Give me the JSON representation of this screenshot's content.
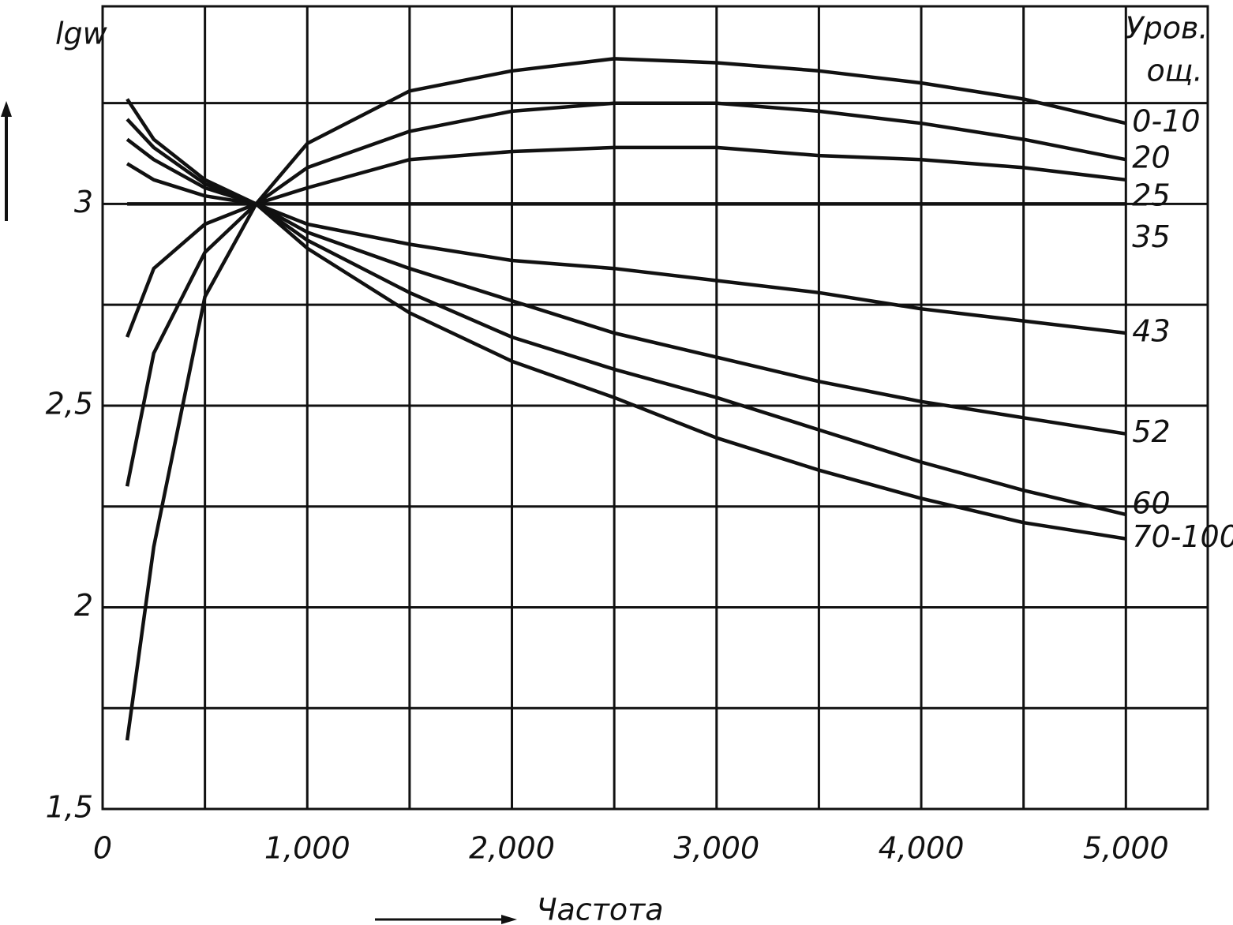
{
  "chart_data": {
    "type": "line",
    "y_label": "lgw",
    "x_label": "Частота",
    "legend_title": [
      "Уров.",
      "ощ."
    ],
    "x": [
      120,
      250,
      500,
      750,
      1000,
      1500,
      2000,
      2500,
      3000,
      3500,
      4000,
      4500,
      5000
    ],
    "series": [
      {
        "name": "0-10",
        "color": "#111111",
        "values": [
          1.67,
          2.15,
          2.77,
          3.0,
          3.15,
          3.28,
          3.33,
          3.36,
          3.35,
          3.33,
          3.3,
          3.26,
          3.2
        ]
      },
      {
        "name": "20",
        "color": "#111111",
        "values": [
          2.3,
          2.63,
          2.88,
          3.0,
          3.09,
          3.18,
          3.23,
          3.25,
          3.25,
          3.23,
          3.2,
          3.16,
          3.11
        ]
      },
      {
        "name": "25",
        "color": "#111111",
        "values": [
          2.67,
          2.84,
          2.95,
          3.0,
          3.04,
          3.11,
          3.13,
          3.14,
          3.14,
          3.12,
          3.11,
          3.09,
          3.06
        ]
      },
      {
        "name": "35",
        "color": "#111111",
        "values": [
          3.0,
          3.0,
          3.0,
          3.0,
          3.0,
          3.0,
          3.0,
          3.0,
          3.0,
          3.0,
          3.0,
          3.0,
          3.0
        ]
      },
      {
        "name": "43",
        "color": "#111111",
        "values": [
          3.1,
          3.06,
          3.02,
          3.0,
          2.95,
          2.9,
          2.86,
          2.84,
          2.81,
          2.78,
          2.74,
          2.71,
          2.68
        ]
      },
      {
        "name": "52",
        "color": "#111111",
        "values": [
          3.16,
          3.11,
          3.04,
          3.0,
          2.93,
          2.84,
          2.76,
          2.68,
          2.62,
          2.56,
          2.51,
          2.47,
          2.43
        ]
      },
      {
        "name": "60",
        "color": "#111111",
        "values": [
          3.21,
          3.14,
          3.05,
          3.0,
          2.91,
          2.78,
          2.67,
          2.59,
          2.52,
          2.44,
          2.36,
          2.29,
          2.23
        ]
      },
      {
        "name": "70-100",
        "color": "#111111",
        "values": [
          3.26,
          3.16,
          3.06,
          3.0,
          2.89,
          2.73,
          2.61,
          2.52,
          2.42,
          2.34,
          2.27,
          2.21,
          2.17
        ]
      }
    ],
    "xlim": [
      0,
      5400
    ],
    "ylim": [
      1.5,
      3.49
    ],
    "xticks": [
      0,
      {
        "value": 1000,
        "label": "1,000"
      },
      {
        "value": 2000,
        "label": "2,000"
      },
      {
        "value": 3000,
        "label": "3,000"
      },
      {
        "value": 4000,
        "label": "4,000"
      },
      {
        "value": 5000,
        "label": "5,000"
      }
    ],
    "xminor": [
      500,
      1500,
      2500,
      3500,
      4500
    ],
    "yticks": [
      {
        "value": 1.5,
        "label": "1,5"
      },
      2,
      {
        "value": 2.5,
        "label": "2,5"
      },
      3
    ],
    "yminor": [
      1.75,
      2.25,
      2.75,
      3.25
    ],
    "grid": true
  }
}
